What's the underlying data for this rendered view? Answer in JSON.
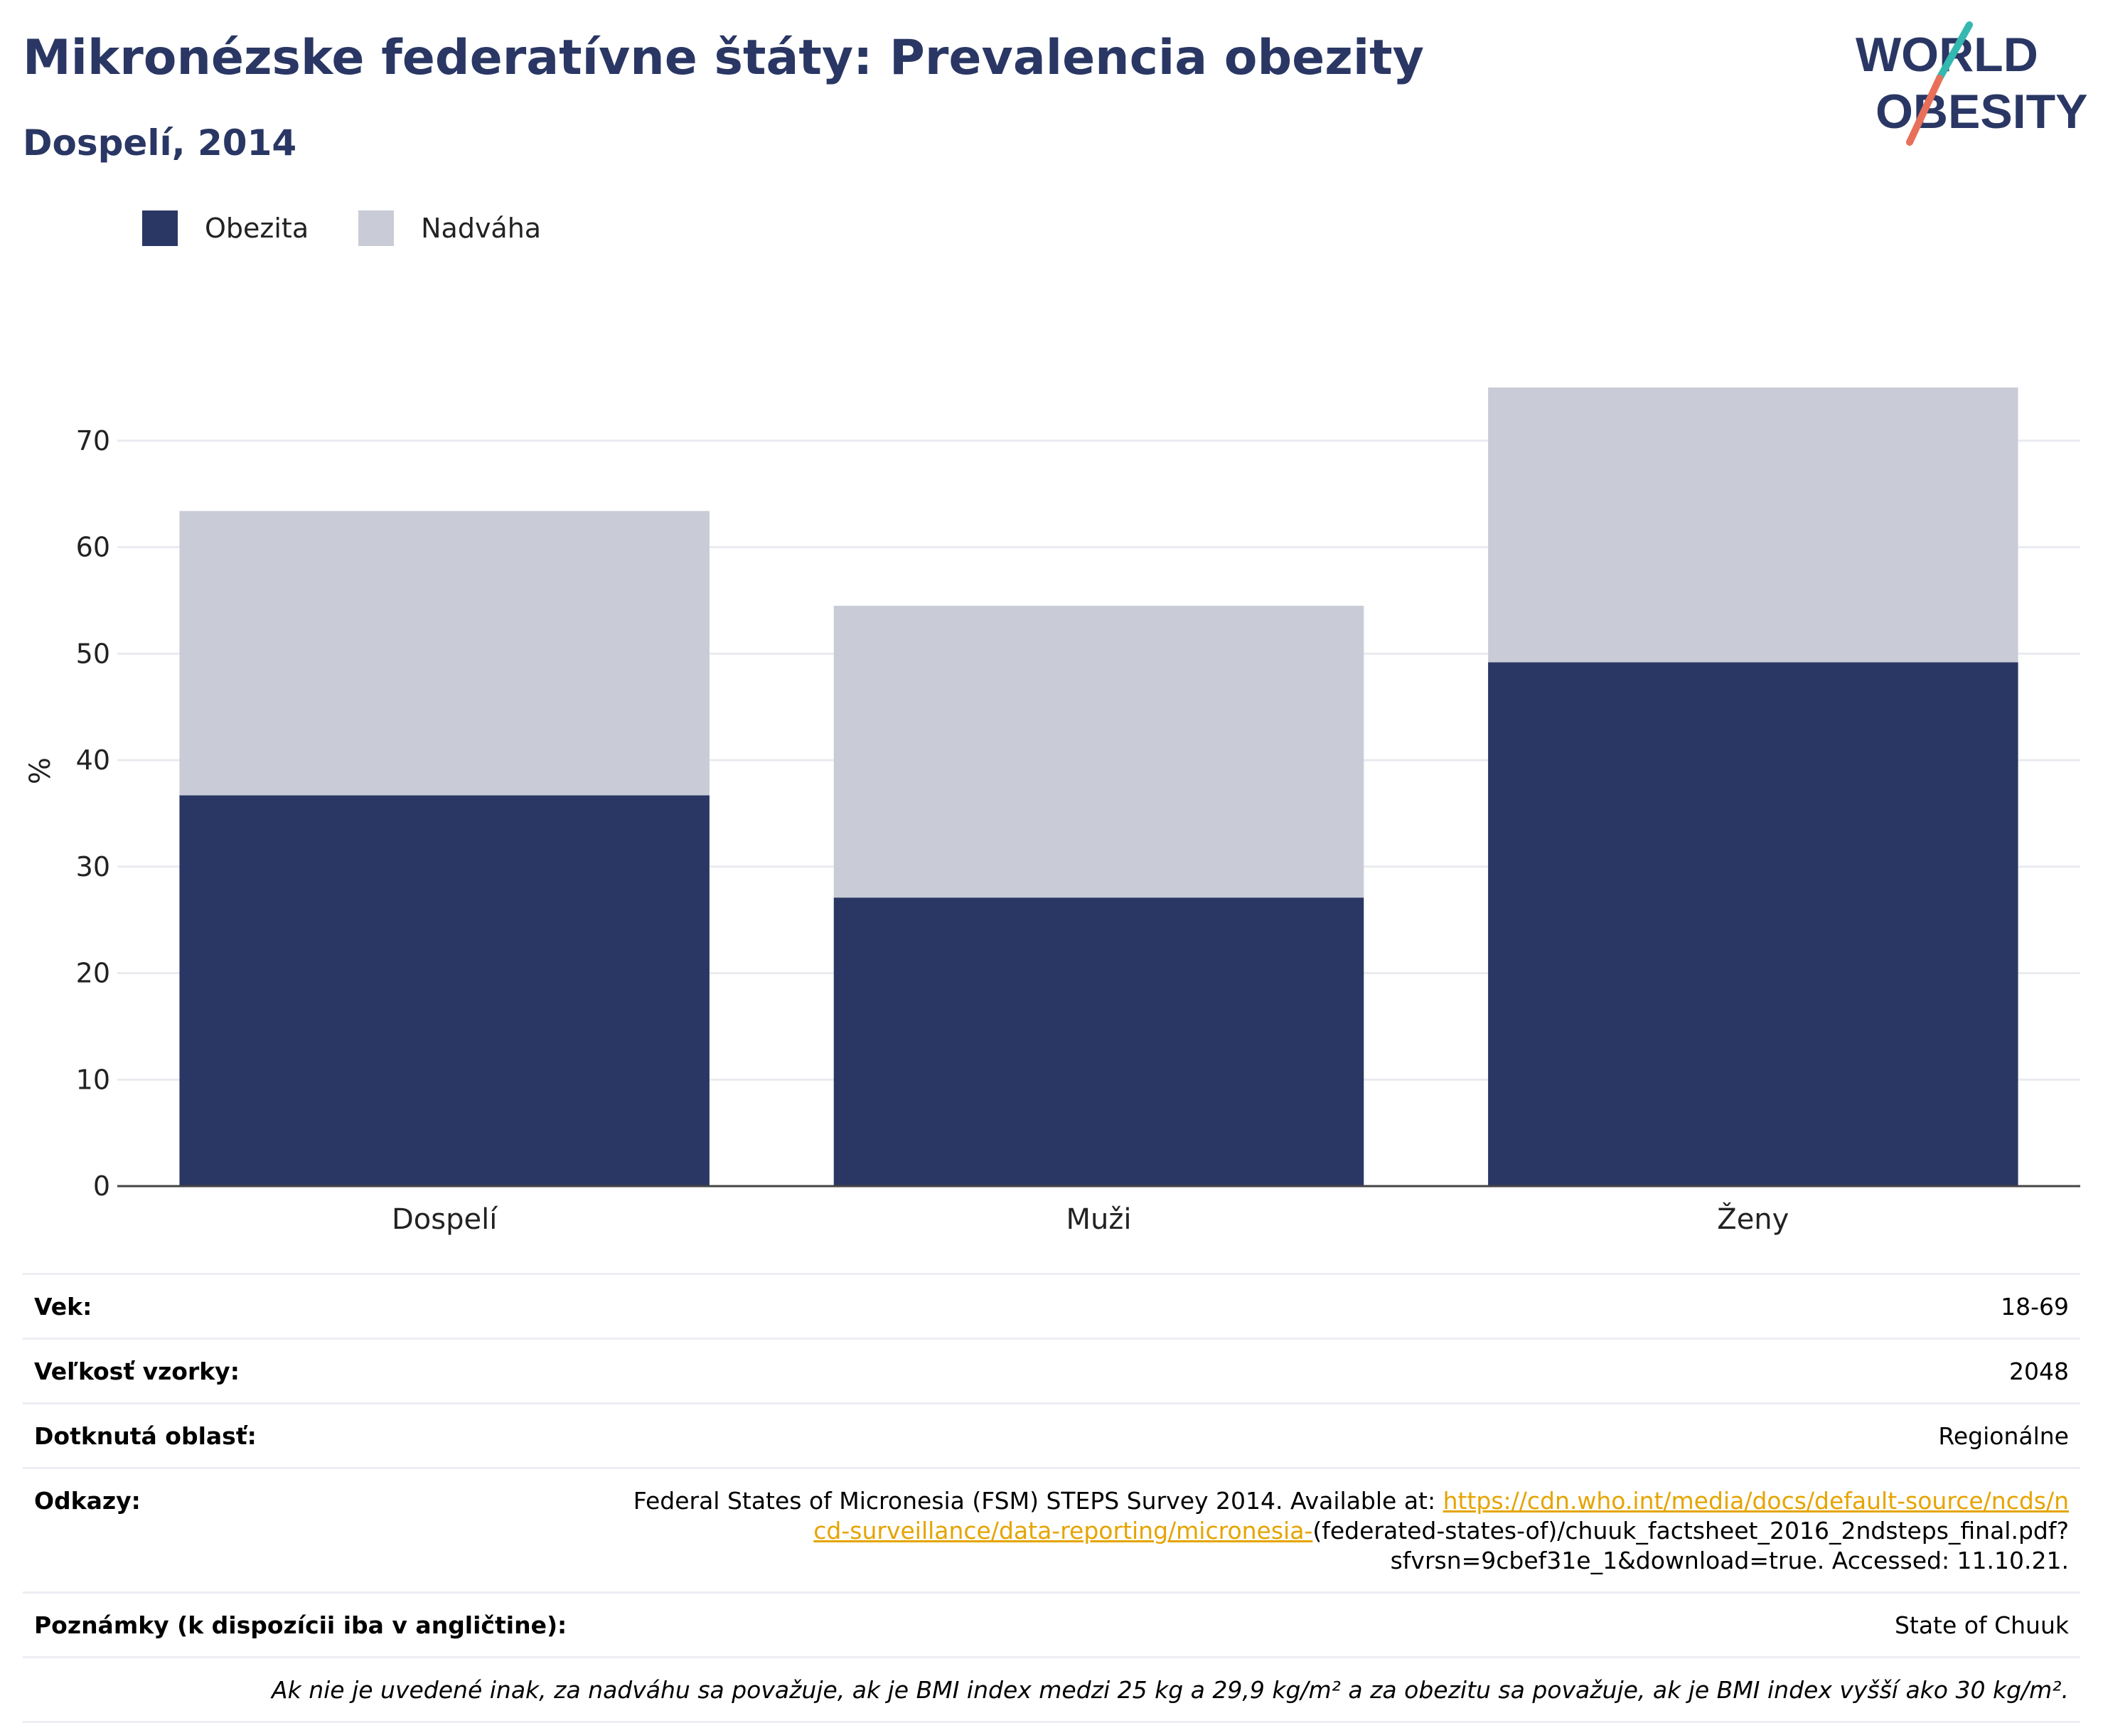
{
  "header": {
    "title": "Mikronézske federatívne štáty: Prevalencia obezity",
    "subtitle": "Dospelí, 2014",
    "logo_text": [
      "WORLD",
      "OBESITY"
    ]
  },
  "colors": {
    "obesity": "#2a3764",
    "overweight": "#c9cbd6",
    "title": "#2a3764",
    "link": "#e5a400",
    "logo_teal": "#34b8b0",
    "logo_coral": "#e8705a"
  },
  "legend": [
    {
      "label": "Obezita",
      "color": "#2a3764"
    },
    {
      "label": "Nadváha",
      "color": "#c9cbd6"
    }
  ],
  "chart_data": {
    "type": "bar",
    "stacked": true,
    "categories": [
      "Dospelí",
      "Muži",
      "Ženy"
    ],
    "series": [
      {
        "name": "Obezita",
        "values": [
          36.7,
          27.1,
          49.2
        ]
      },
      {
        "name": "Nadváha",
        "values": [
          26.7,
          27.4,
          25.8
        ]
      }
    ],
    "totals": [
      63.4,
      54.5,
      75.0
    ],
    "ylabel": "%",
    "ylim": [
      0,
      78
    ],
    "yticks": [
      0,
      10,
      20,
      30,
      40,
      50,
      60,
      70
    ],
    "grid": true,
    "legend_position": "top-left"
  },
  "info_table": [
    {
      "label": "Vek:",
      "value": "18-69"
    },
    {
      "label": "Veľkosť vzorky:",
      "value": "2048"
    },
    {
      "label": "Dotknutá oblasť:",
      "value": "Regionálne"
    }
  ],
  "references": {
    "label": "Odkazy:",
    "prefix": "Federal States of Micronesia (FSM) STEPS Survey 2014. Available at: ",
    "link": "https://cdn.who.int/media/docs/default-source/ncds/ncd-surveillance/data-reporting/micronesia-",
    "suffix": "(federated-states-of)/chuuk_factsheet_2016_2ndsteps_final.pdf?sfvrsn=9cbef31e_1&download=true. Accessed: 11.10.21."
  },
  "notes": {
    "label": "Poznámky (k dispozícii iba v angličtine):",
    "value": "State of Chuuk"
  },
  "footnote": "Ak nie je uvedené inak, za nadváhu sa považuje, ak je BMI index medzi 25 kg a 29,9 kg/m² a za obezitu sa považuje, ak je BMI index vyšší ako 30 kg/m²."
}
